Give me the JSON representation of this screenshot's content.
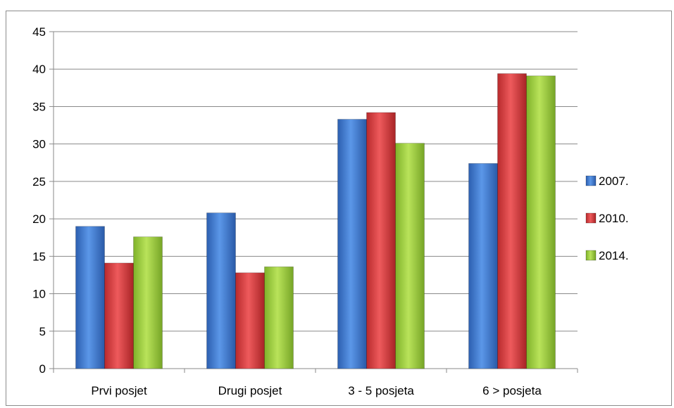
{
  "chart_data": {
    "type": "bar",
    "categories": [
      "Prvi posjet",
      "Drugi posjet",
      "3 - 5 posjeta",
      "6 > posjeta"
    ],
    "series": [
      {
        "name": "2007.",
        "values": [
          19.0,
          20.8,
          33.3,
          27.4
        ],
        "color": "#3d7ad6"
      },
      {
        "name": "2010.",
        "values": [
          14.1,
          12.8,
          34.2,
          39.4
        ],
        "color": "#d9393b"
      },
      {
        "name": "2014.",
        "values": [
          17.6,
          13.6,
          30.1,
          39.1
        ],
        "color": "#9fcf3a"
      }
    ],
    "title": "",
    "xlabel": "",
    "ylabel": "",
    "ylim": [
      0,
      45
    ],
    "yticks": [
      "0",
      "5",
      "10",
      "15",
      "20",
      "25",
      "30",
      "35",
      "40",
      "45"
    ],
    "grid": true,
    "legend_position": "right"
  }
}
